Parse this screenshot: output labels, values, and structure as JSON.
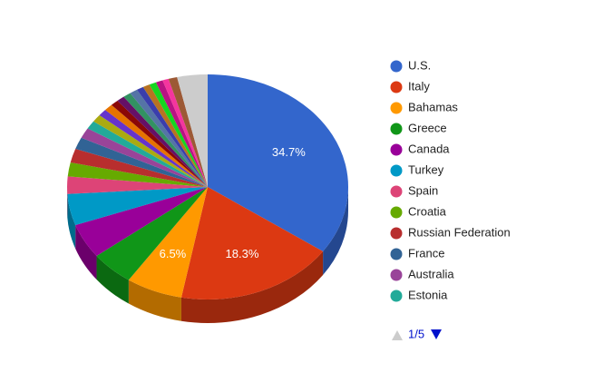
{
  "chart_data": {
    "type": "pie3d",
    "categories": [
      "U.S.",
      "Italy",
      "Bahamas",
      "Greece",
      "Canada",
      "Turkey",
      "Spain",
      "Croatia",
      "Russian Federation",
      "France",
      "Australia",
      "Estonia",
      null,
      null,
      null,
      null,
      null,
      null,
      null,
      null,
      null,
      null,
      null,
      null,
      null,
      null
    ],
    "values": [
      34.7,
      18.3,
      6.5,
      5,
      5,
      4.5,
      2.5,
      2,
      2,
      1.7,
      1.5,
      1.2,
      1.1,
      1,
      1,
      0.9,
      0.9,
      0.9,
      0.9,
      0.8,
      0.8,
      0.8,
      0.8,
      0.7,
      1.0,
      3.5
    ],
    "value_labels": [
      "34.7%",
      "18.3%",
      "6.5%",
      null,
      null,
      null,
      null,
      null,
      null,
      null,
      null,
      null,
      null,
      null,
      null,
      null,
      null,
      null,
      null,
      null,
      null,
      null,
      null,
      null,
      null,
      null
    ],
    "colors": [
      "#3366cc",
      "#dc3912",
      "#ff9900",
      "#109618",
      "#990099",
      "#0099c6",
      "#dd4477",
      "#66aa00",
      "#b82e2e",
      "#316395",
      "#994499",
      "#22aa99",
      "#aaaa11",
      "#6633cc",
      "#e67300",
      "#8b0707",
      "#651067",
      "#329262",
      "#5574a6",
      "#3b3eac",
      "#b77322",
      "#16d620",
      "#b91383",
      "#f4359e",
      "#9c5935",
      "#cccccc"
    ],
    "legend_page": "1/5"
  }
}
